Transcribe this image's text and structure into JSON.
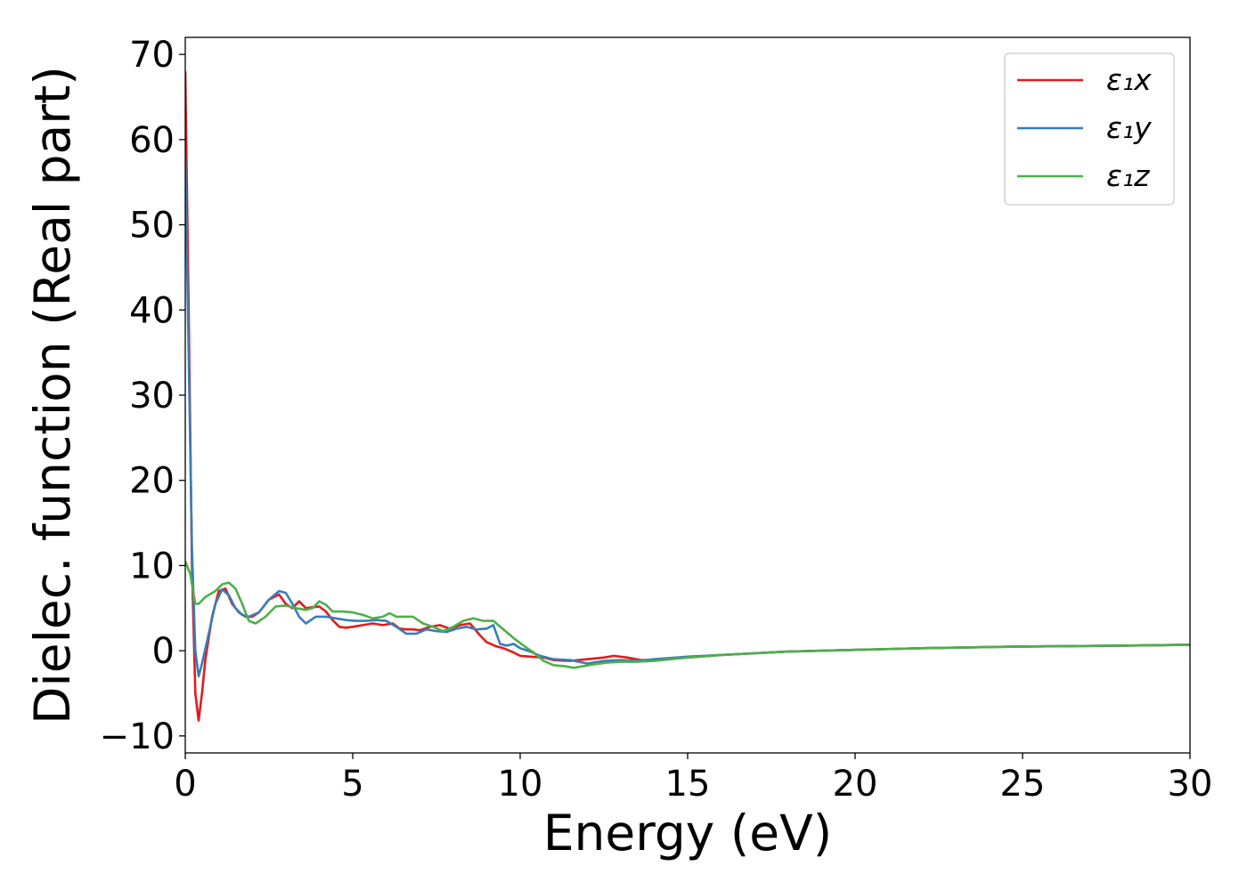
{
  "chart_data": {
    "type": "line",
    "xlabel": "Energy (eV)",
    "ylabel": "Dielec. function (Real part)",
    "xlim": [
      0,
      30
    ],
    "ylim": [
      -12,
      72
    ],
    "xticks": [
      0,
      5,
      10,
      15,
      20,
      25,
      30
    ],
    "xtick_labels": [
      "0",
      "5",
      "10",
      "15",
      "20",
      "25",
      "30"
    ],
    "yticks": [
      -10,
      0,
      10,
      20,
      30,
      40,
      50,
      60,
      70
    ],
    "ytick_labels": [
      "−10",
      "0",
      "10",
      "20",
      "30",
      "40",
      "50",
      "60",
      "70"
    ],
    "grid": false,
    "legend_position": "top-right",
    "series": [
      {
        "name": "ε₁x",
        "color": "#e41a1c",
        "points": [
          [
            0,
            68
          ],
          [
            0.1,
            40
          ],
          [
            0.2,
            10
          ],
          [
            0.3,
            -5
          ],
          [
            0.4,
            -8.2
          ],
          [
            0.5,
            -5
          ],
          [
            0.6,
            -1
          ],
          [
            0.8,
            4
          ],
          [
            1.0,
            7
          ],
          [
            1.2,
            7.3
          ],
          [
            1.4,
            5.5
          ],
          [
            1.6,
            4.5
          ],
          [
            1.8,
            4
          ],
          [
            2.0,
            4
          ],
          [
            2.2,
            4.5
          ],
          [
            2.5,
            6
          ],
          [
            2.8,
            6.6
          ],
          [
            3.0,
            5.5
          ],
          [
            3.2,
            5
          ],
          [
            3.4,
            5.8
          ],
          [
            3.6,
            5
          ],
          [
            3.8,
            5.1
          ],
          [
            4.0,
            5.2
          ],
          [
            4.2,
            4.6
          ],
          [
            4.4,
            3.6
          ],
          [
            4.6,
            2.8
          ],
          [
            4.8,
            2.7
          ],
          [
            5.0,
            2.8
          ],
          [
            5.3,
            3
          ],
          [
            5.6,
            3.2
          ],
          [
            5.9,
            3
          ],
          [
            6.2,
            3.2
          ],
          [
            6.4,
            2.6
          ],
          [
            6.6,
            2.5
          ],
          [
            6.8,
            2.5
          ],
          [
            7.0,
            2.4
          ],
          [
            7.3,
            2.8
          ],
          [
            7.6,
            3
          ],
          [
            7.9,
            2.6
          ],
          [
            8.2,
            3
          ],
          [
            8.5,
            3.2
          ],
          [
            8.8,
            1.8
          ],
          [
            9.0,
            1
          ],
          [
            9.3,
            0.5
          ],
          [
            9.5,
            0.3
          ],
          [
            9.8,
            -0.2
          ],
          [
            10.0,
            -0.6
          ],
          [
            10.3,
            -0.7
          ],
          [
            10.7,
            -0.8
          ],
          [
            11.0,
            -1.1
          ],
          [
            11.5,
            -1.2
          ],
          [
            12.0,
            -1
          ],
          [
            12.5,
            -0.8
          ],
          [
            12.8,
            -0.6
          ],
          [
            13.2,
            -0.8
          ],
          [
            13.6,
            -1.1
          ],
          [
            14.0,
            -1.1
          ],
          [
            15.0,
            -0.8
          ],
          [
            16.0,
            -0.5
          ],
          [
            17.0,
            -0.3
          ],
          [
            18.0,
            -0.1
          ],
          [
            19.0,
            0
          ],
          [
            20.0,
            0.1
          ],
          [
            22.0,
            0.3
          ],
          [
            25.0,
            0.5
          ],
          [
            28.0,
            0.6
          ],
          [
            30.0,
            0.7
          ]
        ]
      },
      {
        "name": "ε₁y",
        "color": "#377eb8",
        "points": [
          [
            0,
            58
          ],
          [
            0.1,
            35
          ],
          [
            0.2,
            12
          ],
          [
            0.3,
            0
          ],
          [
            0.4,
            -3
          ],
          [
            0.5,
            -1.5
          ],
          [
            0.7,
            2
          ],
          [
            0.9,
            5.5
          ],
          [
            1.1,
            7.2
          ],
          [
            1.3,
            6.5
          ],
          [
            1.5,
            5
          ],
          [
            1.7,
            4.2
          ],
          [
            1.9,
            4
          ],
          [
            2.2,
            4.5
          ],
          [
            2.5,
            6
          ],
          [
            2.8,
            7
          ],
          [
            3.0,
            6.8
          ],
          [
            3.2,
            5.5
          ],
          [
            3.4,
            4
          ],
          [
            3.6,
            3.2
          ],
          [
            3.9,
            4
          ],
          [
            4.2,
            4
          ],
          [
            4.5,
            3.8
          ],
          [
            4.8,
            3.6
          ],
          [
            5.1,
            3.5
          ],
          [
            5.4,
            3.5
          ],
          [
            5.7,
            3.6
          ],
          [
            6.0,
            3.5
          ],
          [
            6.3,
            2.8
          ],
          [
            6.6,
            2
          ],
          [
            6.9,
            2
          ],
          [
            7.2,
            2.5
          ],
          [
            7.5,
            2.3
          ],
          [
            7.8,
            2.2
          ],
          [
            8.1,
            2.6
          ],
          [
            8.4,
            2.8
          ],
          [
            8.7,
            2.5
          ],
          [
            9.0,
            2.6
          ],
          [
            9.2,
            3
          ],
          [
            9.4,
            0.8
          ],
          [
            9.6,
            0.6
          ],
          [
            9.8,
            0.8
          ],
          [
            10.0,
            0.3
          ],
          [
            10.3,
            -0.1
          ],
          [
            10.6,
            -0.6
          ],
          [
            11.0,
            -1
          ],
          [
            11.5,
            -1.1
          ],
          [
            12.0,
            -1.5
          ],
          [
            12.5,
            -1.2
          ],
          [
            13.0,
            -1.1
          ],
          [
            13.5,
            -1.2
          ],
          [
            14.0,
            -1
          ],
          [
            15.0,
            -0.7
          ],
          [
            16.0,
            -0.5
          ],
          [
            17.0,
            -0.3
          ],
          [
            18.0,
            -0.1
          ],
          [
            20.0,
            0.1
          ],
          [
            22.0,
            0.3
          ],
          [
            25.0,
            0.5
          ],
          [
            28.0,
            0.6
          ],
          [
            30.0,
            0.7
          ]
        ]
      },
      {
        "name": "ε₁z",
        "color": "#4daf4a",
        "points": [
          [
            0,
            10.5
          ],
          [
            0.15,
            9
          ],
          [
            0.3,
            5.5
          ],
          [
            0.4,
            5.5
          ],
          [
            0.6,
            6.3
          ],
          [
            0.9,
            7
          ],
          [
            1.1,
            7.8
          ],
          [
            1.3,
            8
          ],
          [
            1.5,
            7.3
          ],
          [
            1.7,
            5.5
          ],
          [
            1.9,
            3.5
          ],
          [
            2.1,
            3.2
          ],
          [
            2.4,
            4
          ],
          [
            2.7,
            5.2
          ],
          [
            3.0,
            5.3
          ],
          [
            3.3,
            5
          ],
          [
            3.6,
            4.8
          ],
          [
            3.8,
            5
          ],
          [
            4.0,
            5.8
          ],
          [
            4.2,
            5.4
          ],
          [
            4.4,
            4.6
          ],
          [
            4.7,
            4.6
          ],
          [
            5.0,
            4.5
          ],
          [
            5.3,
            4.2
          ],
          [
            5.6,
            3.8
          ],
          [
            5.9,
            4
          ],
          [
            6.1,
            4.4
          ],
          [
            6.3,
            4
          ],
          [
            6.6,
            4
          ],
          [
            6.8,
            4
          ],
          [
            7.1,
            3.2
          ],
          [
            7.4,
            2.8
          ],
          [
            7.7,
            2.3
          ],
          [
            8.0,
            2.8
          ],
          [
            8.3,
            3.5
          ],
          [
            8.6,
            3.8
          ],
          [
            8.9,
            3.5
          ],
          [
            9.2,
            3.5
          ],
          [
            9.5,
            2.5
          ],
          [
            9.8,
            1.5
          ],
          [
            10.1,
            0.6
          ],
          [
            10.4,
            -0.2
          ],
          [
            10.7,
            -1.2
          ],
          [
            11.0,
            -1.7
          ],
          [
            11.3,
            -1.8
          ],
          [
            11.6,
            -2
          ],
          [
            11.9,
            -1.8
          ],
          [
            12.2,
            -1.6
          ],
          [
            12.6,
            -1.4
          ],
          [
            13.0,
            -1.3
          ],
          [
            13.5,
            -1.3
          ],
          [
            14.0,
            -1.2
          ],
          [
            15.0,
            -0.8
          ],
          [
            16.0,
            -0.5
          ],
          [
            17.0,
            -0.3
          ],
          [
            18.0,
            -0.1
          ],
          [
            20.0,
            0.1
          ],
          [
            22.0,
            0.3
          ],
          [
            25.0,
            0.5
          ],
          [
            28.0,
            0.6
          ],
          [
            30.0,
            0.7
          ]
        ]
      }
    ]
  }
}
